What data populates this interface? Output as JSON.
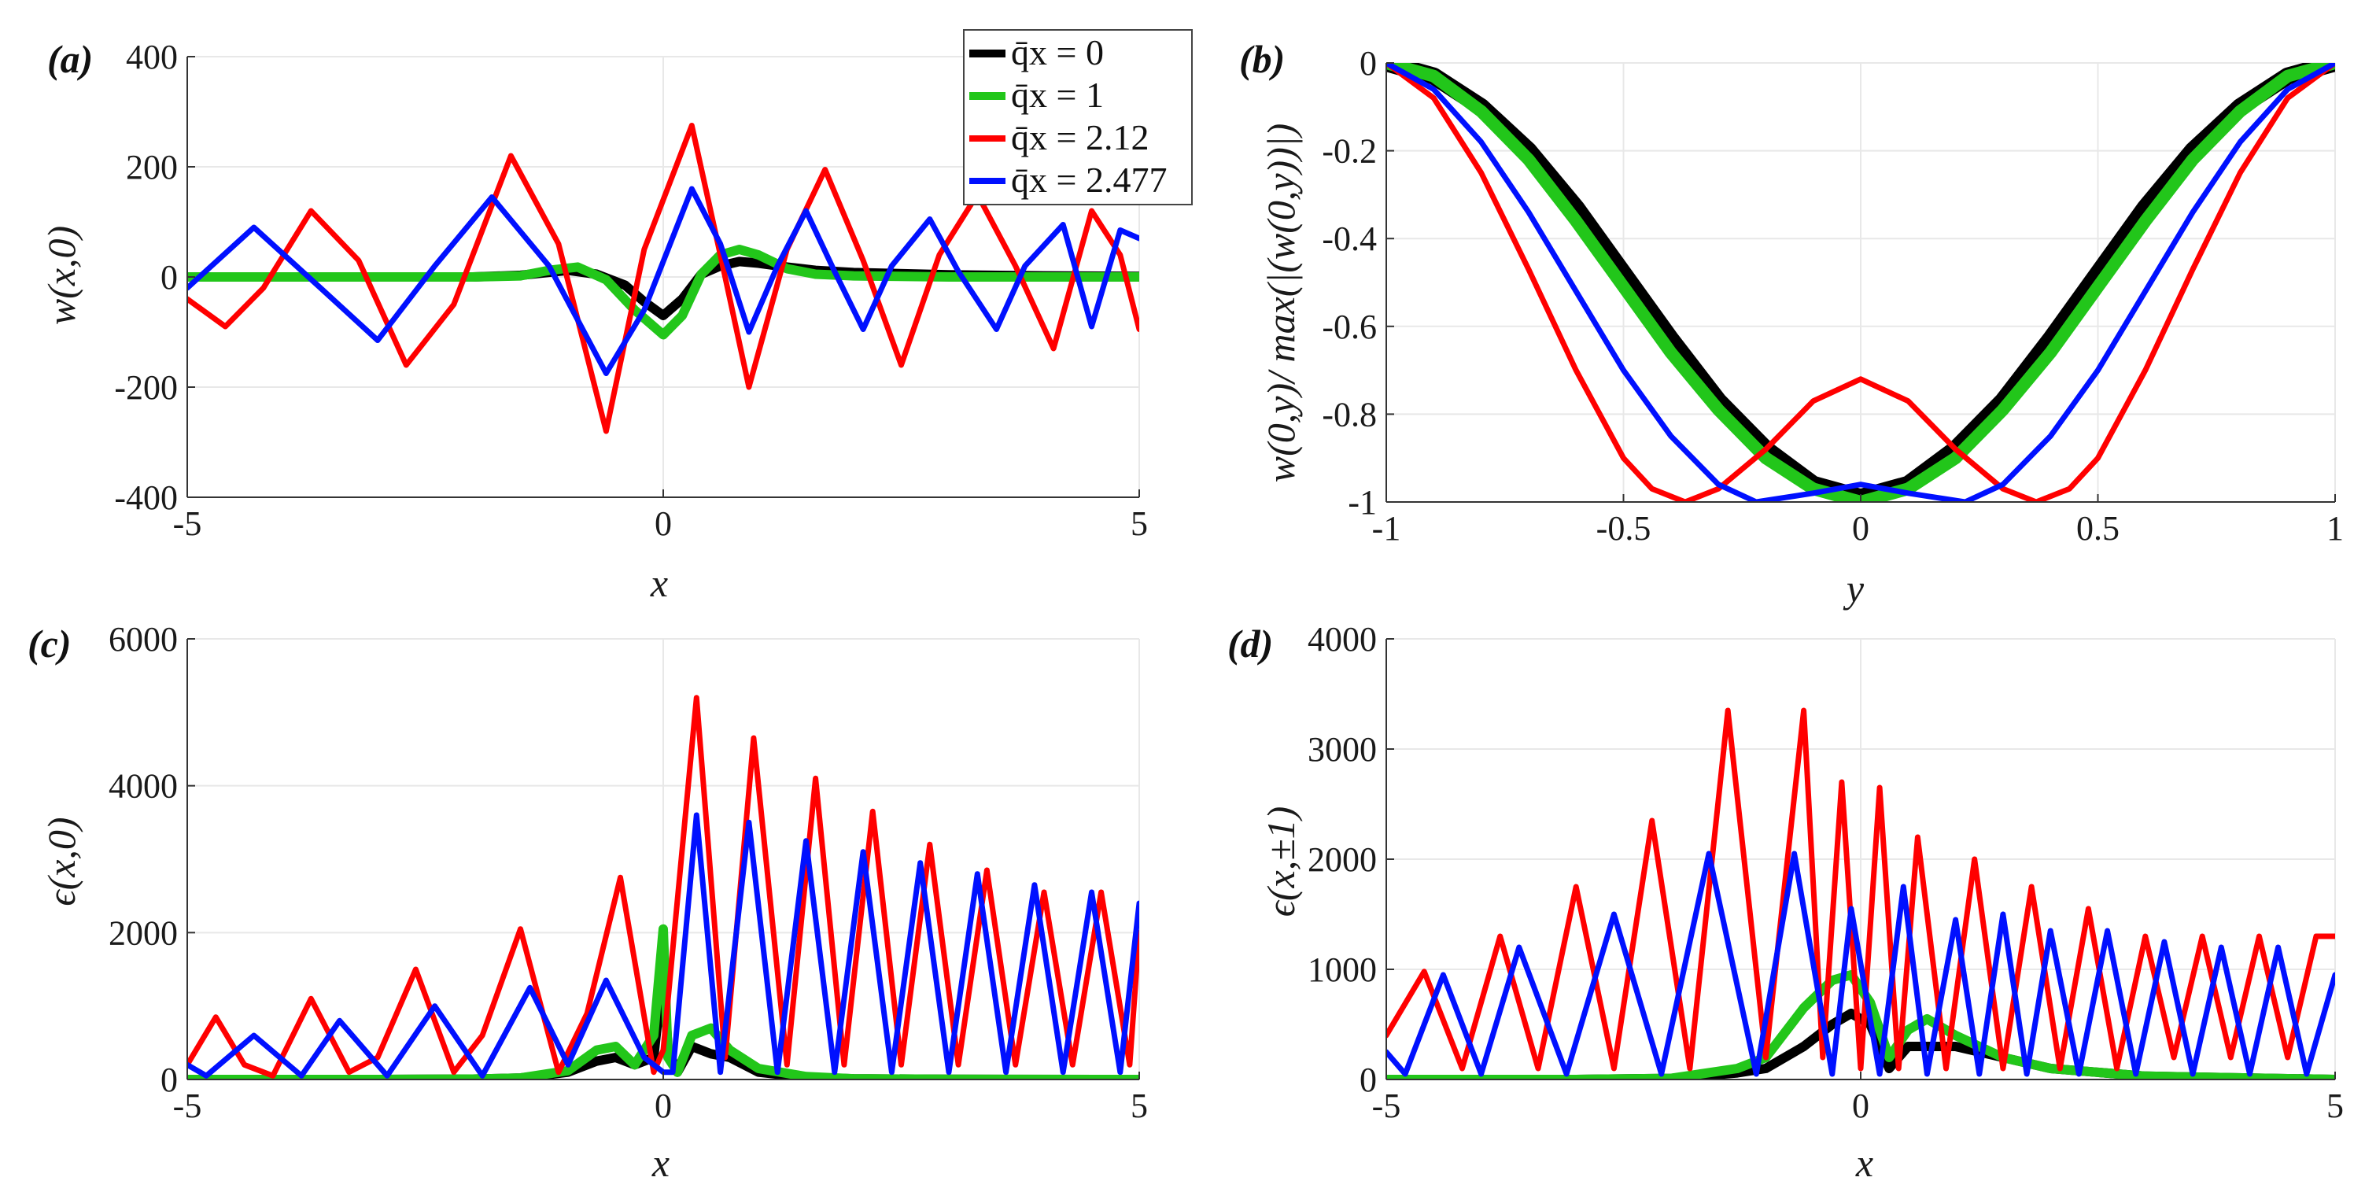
{
  "legend": {
    "entries": [
      {
        "label": "q̄x = 0",
        "color": "#000000"
      },
      {
        "label": "q̄x = 1",
        "color": "#22c61a"
      },
      {
        "label": "q̄x = 2.12",
        "color": "#ff0000"
      },
      {
        "label": "q̄x = 2.477",
        "color": "#0010ff"
      }
    ]
  },
  "chart_data": [
    {
      "panel": "(a)",
      "type": "line",
      "xlabel": "x",
      "ylabel": "w(x,0)",
      "xlim": [
        -5,
        5
      ],
      "ylim": [
        -400,
        400
      ],
      "xticks": [
        -5,
        0,
        5
      ],
      "yticks": [
        -400,
        -200,
        0,
        200,
        400
      ],
      "series": [
        {
          "name": "q̄x = 0",
          "color": "#000000",
          "x": [
            -5,
            -4,
            -3,
            -2,
            -1.5,
            -1,
            -0.7,
            -0.4,
            -0.2,
            0,
            0.2,
            0.4,
            0.6,
            0.8,
            1,
            1.3,
            1.6,
            2,
            3,
            4,
            5
          ],
          "y": [
            0,
            0,
            0,
            0,
            3,
            12,
            5,
            -15,
            -45,
            -70,
            -40,
            5,
            20,
            28,
            25,
            18,
            12,
            8,
            4,
            2,
            1
          ]
        },
        {
          "name": "q̄x = 1",
          "color": "#22c61a",
          "x": [
            -5,
            -4,
            -3,
            -2,
            -1.5,
            -1.2,
            -0.9,
            -0.6,
            -0.3,
            0,
            0.2,
            0.4,
            0.6,
            0.8,
            1,
            1.3,
            1.6,
            2,
            3,
            4,
            5
          ],
          "y": [
            0,
            0,
            0,
            0,
            2,
            12,
            18,
            -5,
            -60,
            -105,
            -70,
            5,
            40,
            50,
            40,
            15,
            5,
            2,
            0,
            0,
            0
          ]
        },
        {
          "name": "q̄x = 2.12",
          "color": "#ff0000",
          "x": [
            -5,
            -4.6,
            -4.2,
            -3.7,
            -3.2,
            -2.7,
            -2.2,
            -1.6,
            -1.1,
            -0.6,
            -0.2,
            0.3,
            0.6,
            0.9,
            1.3,
            1.7,
            2.1,
            2.5,
            2.9,
            3.3,
            3.7,
            4.1,
            4.5,
            4.8,
            5
          ],
          "y": [
            -40,
            -90,
            -20,
            120,
            30,
            -160,
            -50,
            220,
            60,
            -280,
            50,
            275,
            40,
            -200,
            50,
            195,
            30,
            -160,
            40,
            150,
            20,
            -130,
            120,
            40,
            -95
          ]
        },
        {
          "name": "q̄x = 2.477",
          "color": "#0010ff",
          "x": [
            -5,
            -4.3,
            -3.6,
            -3,
            -2.4,
            -1.8,
            -1.2,
            -0.6,
            -0.2,
            0.3,
            0.6,
            0.9,
            1.2,
            1.5,
            1.8,
            2.1,
            2.4,
            2.8,
            3.1,
            3.5,
            3.8,
            4.2,
            4.5,
            4.8,
            5
          ],
          "y": [
            -20,
            90,
            -20,
            -115,
            20,
            145,
            20,
            -175,
            -60,
            160,
            60,
            -100,
            20,
            120,
            10,
            -95,
            20,
            105,
            10,
            -95,
            20,
            95,
            -90,
            85,
            70
          ]
        }
      ]
    },
    {
      "panel": "(b)",
      "type": "line",
      "xlabel": "y",
      "ylabel": "w(0,y)/ max(|(w(0,y))|)",
      "xlim": [
        -1,
        1
      ],
      "ylim": [
        -1,
        0
      ],
      "xticks": [
        -1,
        -0.5,
        0,
        0.5,
        1
      ],
      "yticks": [
        -1,
        -0.8,
        -0.6,
        -0.4,
        -0.2,
        0
      ],
      "series": [
        {
          "name": "q̄x = 0",
          "color": "#000000",
          "x": [
            -1,
            -0.9,
            -0.8,
            -0.7,
            -0.6,
            -0.5,
            -0.4,
            -0.3,
            -0.2,
            -0.1,
            0,
            0.1,
            0.2,
            0.3,
            0.4,
            0.5,
            0.6,
            0.7,
            0.8,
            0.9,
            1
          ],
          "y": [
            0,
            -0.03,
            -0.1,
            -0.2,
            -0.33,
            -0.48,
            -0.63,
            -0.77,
            -0.88,
            -0.96,
            -0.99,
            -0.96,
            -0.88,
            -0.77,
            -0.63,
            -0.48,
            -0.33,
            -0.2,
            -0.1,
            -0.03,
            0
          ]
        },
        {
          "name": "q̄x = 1",
          "color": "#22c61a",
          "x": [
            -1,
            -0.9,
            -0.8,
            -0.7,
            -0.6,
            -0.5,
            -0.4,
            -0.3,
            -0.2,
            -0.1,
            0,
            0.1,
            0.2,
            0.3,
            0.4,
            0.5,
            0.6,
            0.7,
            0.8,
            0.9,
            1
          ],
          "y": [
            0,
            -0.03,
            -0.11,
            -0.22,
            -0.36,
            -0.51,
            -0.66,
            -0.79,
            -0.9,
            -0.97,
            -1,
            -0.97,
            -0.9,
            -0.79,
            -0.66,
            -0.51,
            -0.36,
            -0.22,
            -0.11,
            -0.03,
            0
          ]
        },
        {
          "name": "q̄x = 2.12",
          "color": "#ff0000",
          "x": [
            -1,
            -0.9,
            -0.8,
            -0.7,
            -0.6,
            -0.5,
            -0.44,
            -0.37,
            -0.3,
            -0.2,
            -0.1,
            0,
            0.1,
            0.2,
            0.3,
            0.37,
            0.44,
            0.5,
            0.6,
            0.7,
            0.8,
            0.9,
            1
          ],
          "y": [
            0,
            -0.08,
            -0.25,
            -0.47,
            -0.7,
            -0.9,
            -0.97,
            -1,
            -0.97,
            -0.88,
            -0.77,
            -0.72,
            -0.77,
            -0.88,
            -0.97,
            -1,
            -0.97,
            -0.9,
            -0.7,
            -0.47,
            -0.25,
            -0.08,
            0
          ]
        },
        {
          "name": "q̄x = 2.477",
          "color": "#0010ff",
          "x": [
            -1,
            -0.9,
            -0.8,
            -0.7,
            -0.6,
            -0.5,
            -0.4,
            -0.3,
            -0.22,
            -0.1,
            0,
            0.1,
            0.22,
            0.3,
            0.4,
            0.5,
            0.6,
            0.7,
            0.8,
            0.9,
            1
          ],
          "y": [
            0,
            -0.06,
            -0.18,
            -0.34,
            -0.52,
            -0.7,
            -0.85,
            -0.96,
            -1,
            -0.98,
            -0.96,
            -0.98,
            -1,
            -0.96,
            -0.85,
            -0.7,
            -0.52,
            -0.34,
            -0.18,
            -0.06,
            0
          ]
        }
      ]
    },
    {
      "panel": "(c)",
      "type": "line",
      "xlabel": "x",
      "ylabel": "ϵ(x,0)",
      "xlim": [
        -5,
        5
      ],
      "ylim": [
        0,
        6000
      ],
      "xticks": [
        -5,
        0,
        5
      ],
      "yticks": [
        0,
        2000,
        4000,
        6000
      ],
      "series": [
        {
          "name": "q̄x = 0",
          "color": "#000000",
          "x": [
            -5,
            -3,
            -2,
            -1.5,
            -1,
            -0.7,
            -0.5,
            -0.3,
            -0.1,
            0,
            0.05,
            0.15,
            0.3,
            0.5,
            0.7,
            1,
            1.5,
            2,
            3,
            5
          ],
          "y": [
            0,
            0,
            5,
            20,
            100,
            250,
            300,
            200,
            300,
            1500,
            400,
            100,
            450,
            350,
            300,
            100,
            30,
            10,
            2,
            0
          ]
        },
        {
          "name": "q̄x = 1",
          "color": "#22c61a",
          "x": [
            -5,
            -3,
            -2,
            -1.5,
            -1,
            -0.7,
            -0.5,
            -0.3,
            -0.1,
            0,
            0.05,
            0.15,
            0.3,
            0.5,
            0.7,
            1,
            1.5,
            2,
            3,
            5
          ],
          "y": [
            0,
            0,
            5,
            20,
            120,
            400,
            450,
            200,
            600,
            2050,
            300,
            100,
            600,
            700,
            400,
            150,
            40,
            10,
            2,
            0
          ]
        },
        {
          "name": "q̄x = 2.12",
          "color": "#ff0000",
          "x": [
            -5,
            -4.7,
            -4.4,
            -4.1,
            -3.7,
            -3.3,
            -3,
            -2.6,
            -2.2,
            -1.9,
            -1.5,
            -1.1,
            -0.8,
            -0.45,
            -0.1,
            0,
            0.35,
            0.65,
            0.95,
            1.3,
            1.6,
            1.9,
            2.2,
            2.5,
            2.8,
            3.1,
            3.4,
            3.7,
            4,
            4.3,
            4.6,
            4.9,
            5
          ],
          "y": [
            200,
            850,
            200,
            50,
            1100,
            100,
            300,
            1500,
            100,
            600,
            2050,
            100,
            900,
            2750,
            100,
            400,
            5200,
            300,
            4650,
            200,
            4100,
            200,
            3650,
            200,
            3200,
            200,
            2850,
            200,
            2550,
            200,
            2550,
            200,
            2000
          ]
        },
        {
          "name": "q̄x = 2.477",
          "color": "#0010ff",
          "x": [
            -5,
            -4.8,
            -4.3,
            -3.8,
            -3.4,
            -2.9,
            -2.4,
            -1.9,
            -1.4,
            -1,
            -0.6,
            -0.2,
            0,
            0.1,
            0.35,
            0.6,
            0.9,
            1.2,
            1.5,
            1.8,
            2.1,
            2.4,
            2.7,
            3,
            3.3,
            3.6,
            3.9,
            4.2,
            4.5,
            4.8,
            5
          ],
          "y": [
            200,
            50,
            600,
            50,
            800,
            50,
            1000,
            50,
            1250,
            200,
            1350,
            300,
            100,
            100,
            3600,
            100,
            3500,
            100,
            3250,
            100,
            3100,
            100,
            2950,
            100,
            2800,
            100,
            2650,
            100,
            2550,
            100,
            2400
          ]
        }
      ]
    },
    {
      "panel": "(d)",
      "type": "line",
      "xlabel": "x",
      "ylabel": "ϵ(x,±1)",
      "xlim": [
        -5,
        5
      ],
      "ylim": [
        0,
        4000
      ],
      "xticks": [
        -5,
        0,
        5
      ],
      "yticks": [
        0,
        1000,
        2000,
        3000,
        4000
      ],
      "series": [
        {
          "name": "q̄x = 0",
          "color": "#000000",
          "x": [
            -5,
            -3,
            -2,
            -1.3,
            -1,
            -0.6,
            -0.3,
            -0.1,
            0.1,
            0.3,
            0.5,
            0.7,
            1,
            1.5,
            2,
            3,
            5
          ],
          "y": [
            0,
            0,
            10,
            60,
            100,
            300,
            500,
            600,
            500,
            100,
            300,
            300,
            300,
            200,
            100,
            30,
            0
          ]
        },
        {
          "name": "q̄x = 1",
          "color": "#22c61a",
          "x": [
            -5,
            -3,
            -2,
            -1.3,
            -1,
            -0.6,
            -0.3,
            -0.1,
            0.1,
            0.3,
            0.5,
            0.7,
            1,
            1.5,
            2,
            3,
            5
          ],
          "y": [
            0,
            0,
            10,
            100,
            200,
            650,
            900,
            950,
            700,
            200,
            450,
            550,
            400,
            200,
            100,
            30,
            0
          ]
        },
        {
          "name": "q̄x = 2.12",
          "color": "#ff0000",
          "x": [
            -5,
            -4.6,
            -4.2,
            -3.8,
            -3.4,
            -3,
            -2.6,
            -2.2,
            -1.8,
            -1.4,
            -1,
            -0.6,
            -0.4,
            -0.2,
            0,
            0.2,
            0.4,
            0.6,
            0.9,
            1.2,
            1.5,
            1.8,
            2.1,
            2.4,
            2.7,
            3,
            3.3,
            3.6,
            3.9,
            4.2,
            4.5,
            4.8,
            5
          ],
          "y": [
            400,
            980,
            100,
            1300,
            100,
            1750,
            100,
            2350,
            100,
            3350,
            200,
            3350,
            200,
            2700,
            100,
            2650,
            100,
            2200,
            100,
            2000,
            100,
            1750,
            100,
            1550,
            100,
            1300,
            200,
            1300,
            200,
            1300,
            200,
            1300,
            1300
          ]
        },
        {
          "name": "q̄x = 2.477",
          "color": "#0010ff",
          "x": [
            -5,
            -4.8,
            -4.4,
            -4,
            -3.6,
            -3.1,
            -2.6,
            -2.1,
            -1.6,
            -1.1,
            -0.7,
            -0.3,
            -0.1,
            0.2,
            0.45,
            0.7,
            1,
            1.25,
            1.5,
            1.75,
            2,
            2.3,
            2.6,
            2.9,
            3.2,
            3.5,
            3.8,
            4.1,
            4.4,
            4.7,
            5
          ],
          "y": [
            250,
            50,
            950,
            50,
            1200,
            50,
            1500,
            50,
            2050,
            50,
            2050,
            50,
            1550,
            50,
            1750,
            50,
            1450,
            50,
            1500,
            50,
            1350,
            50,
            1350,
            50,
            1250,
            50,
            1200,
            50,
            1200,
            50,
            950
          ]
        }
      ]
    }
  ]
}
